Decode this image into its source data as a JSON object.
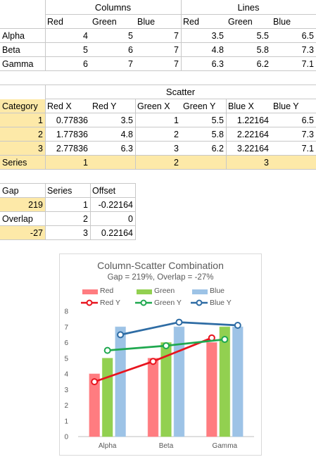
{
  "table1": {
    "group_headers": [
      "Columns",
      "Lines"
    ],
    "col_headers": [
      "Red",
      "Green",
      "Blue",
      "Red",
      "Green",
      "Blue"
    ],
    "rows": [
      {
        "label": "Alpha",
        "values": [
          "4",
          "5",
          "7",
          "3.5",
          "5.5",
          "6.5"
        ]
      },
      {
        "label": "Beta",
        "values": [
          "5",
          "6",
          "7",
          "4.8",
          "5.8",
          "7.3"
        ]
      },
      {
        "label": "Gamma",
        "values": [
          "6",
          "7",
          "7",
          "6.3",
          "6.2",
          "7.1"
        ]
      }
    ]
  },
  "table2": {
    "group_header": "Scatter",
    "col_headers": [
      "Category",
      "Red X",
      "Red Y",
      "Green X",
      "Green Y",
      "Blue X",
      "Blue Y"
    ],
    "rows": [
      {
        "values": [
          "1",
          "0.77836",
          "3.5",
          "1",
          "5.5",
          "1.22164",
          "6.5"
        ]
      },
      {
        "values": [
          "2",
          "1.77836",
          "4.8",
          "2",
          "5.8",
          "2.22164",
          "7.3"
        ]
      },
      {
        "values": [
          "3",
          "2.77836",
          "6.3",
          "3",
          "6.2",
          "3.22164",
          "7.1"
        ]
      }
    ],
    "series_row": {
      "label": "Series",
      "values": [
        "1",
        "2",
        "3"
      ]
    }
  },
  "table3": {
    "col_headers": [
      "Gap",
      "Series",
      "Offset"
    ],
    "rows": [
      {
        "values": [
          "219",
          "1",
          "-0.22164"
        ]
      },
      {
        "values": [
          "Overlap",
          "2",
          "0"
        ]
      },
      {
        "values": [
          "-27",
          "3",
          "0.22164"
        ]
      }
    ]
  },
  "chart_data": {
    "type": "bar",
    "title": "Column-Scatter Combination",
    "subtitle": "Gap = 219%, Overlap = -27%",
    "categories": [
      "Alpha",
      "Beta",
      "Gamma"
    ],
    "ylim": [
      0,
      8
    ],
    "yticks": [
      "0",
      "1",
      "2",
      "3",
      "4",
      "5",
      "6",
      "7",
      "8"
    ],
    "series": [
      {
        "name": "Red",
        "kind": "column",
        "color": "#ff7c80",
        "values": [
          4,
          5,
          6
        ]
      },
      {
        "name": "Green",
        "kind": "column",
        "color": "#92d050",
        "values": [
          5,
          6,
          7
        ]
      },
      {
        "name": "Blue",
        "kind": "column",
        "color": "#9dc3e6",
        "values": [
          7,
          7,
          7
        ]
      },
      {
        "name": "Red Y",
        "kind": "scatter-line",
        "color": "#e8141e",
        "x": [
          0.77836,
          1.77836,
          2.77836
        ],
        "y": [
          3.5,
          4.8,
          6.3
        ]
      },
      {
        "name": "Green Y",
        "kind": "scatter-line",
        "color": "#1fa84f",
        "x": [
          1,
          2,
          3
        ],
        "y": [
          5.5,
          5.8,
          6.2
        ]
      },
      {
        "name": "Blue Y",
        "kind": "scatter-line",
        "color": "#2e6ca4",
        "x": [
          1.22164,
          2.22164,
          3.22164
        ],
        "y": [
          6.5,
          7.3,
          7.1
        ]
      }
    ],
    "legend_position": "top",
    "grid": false
  }
}
